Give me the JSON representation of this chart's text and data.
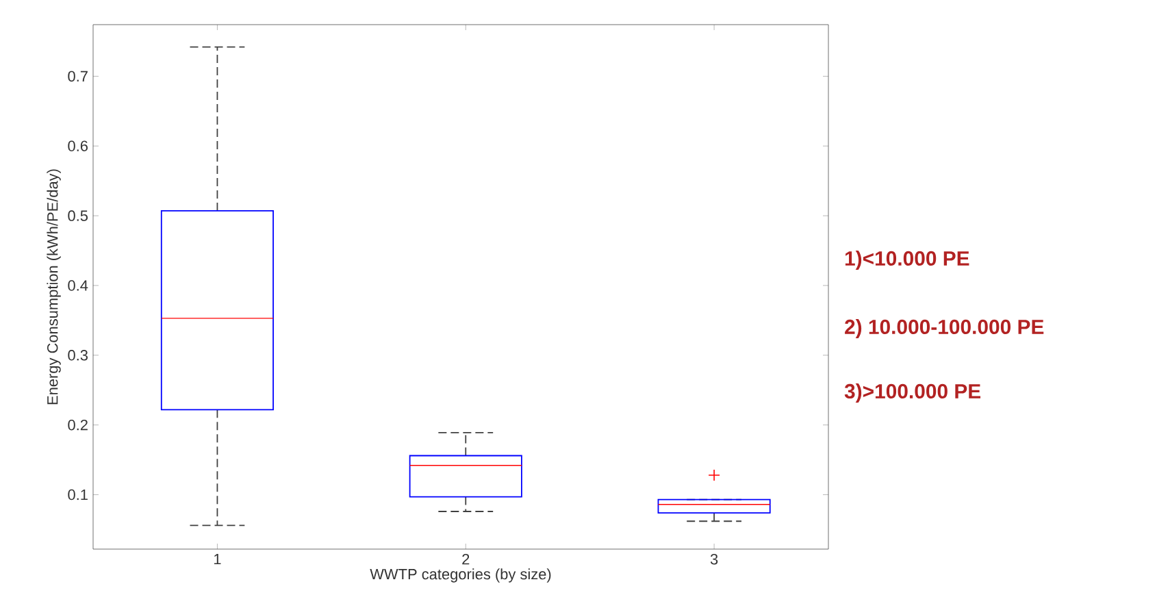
{
  "chart_data": {
    "type": "box",
    "xlabel": "WWTP categories (by size)",
    "ylabel": "Energy Consumption (kWh/PE/day)",
    "categories": [
      "1",
      "2",
      "3"
    ],
    "boxes": [
      {
        "low": 0.056,
        "q1": 0.222,
        "median": 0.353,
        "q3": 0.507,
        "high": 0.742
      },
      {
        "low": 0.076,
        "q1": 0.097,
        "median": 0.142,
        "q3": 0.156,
        "high": 0.189
      },
      {
        "low": 0.062,
        "q1": 0.074,
        "median": 0.086,
        "q3": 0.093,
        "high": 0.093,
        "outliers": [
          0.128
        ]
      }
    ],
    "ylim": [
      0.022,
      0.774
    ],
    "yticks": [
      0.1,
      0.2,
      0.3,
      0.4,
      0.5,
      0.6,
      0.7
    ],
    "annotations": [
      "1)<10.000 PE",
      "2) 10.000-100.000 PE",
      "3)>100.000 PE"
    ],
    "grid": false
  }
}
